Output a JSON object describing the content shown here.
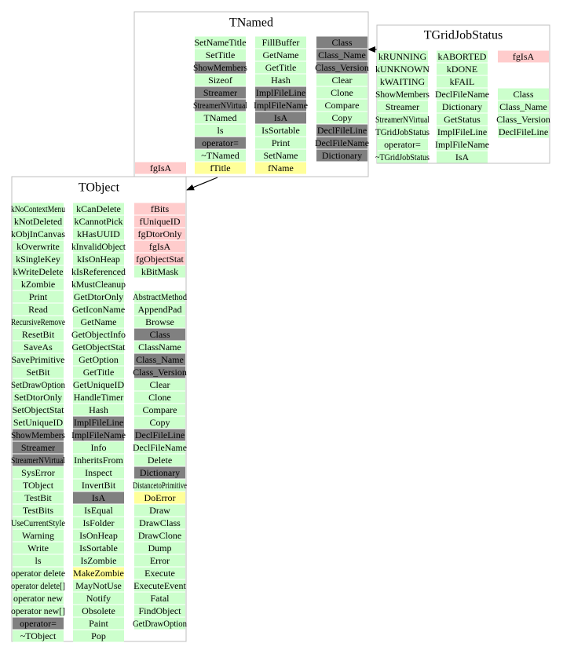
{
  "palette": {
    "g": "#ccffcc",
    "d": "#808080",
    "p": "#ffcccc",
    "y": "#ffff99"
  },
  "classes": [
    {
      "title": "TNamed",
      "columns": [
        [
          [
            "fgIsA",
            "p"
          ]
        ],
        [
          [
            "SetNameTitle",
            "g"
          ],
          [
            "SetTitle",
            "g"
          ],
          [
            "ShowMembers",
            "d"
          ],
          [
            "Sizeof",
            "g"
          ],
          [
            "Streamer",
            "d"
          ],
          [
            "StreamerNVirtual",
            "d"
          ],
          [
            "TNamed",
            "g"
          ],
          [
            "ls",
            "g"
          ],
          [
            "operator=",
            "d"
          ],
          [
            "~TNamed",
            "g"
          ],
          [
            "fTitle",
            "y"
          ]
        ],
        [
          [
            "FillBuffer",
            "g"
          ],
          [
            "GetName",
            "g"
          ],
          [
            "GetTitle",
            "g"
          ],
          [
            "Hash",
            "g"
          ],
          [
            "ImplFileLine",
            "d"
          ],
          [
            "ImplFileName",
            "d"
          ],
          [
            "IsA",
            "d"
          ],
          [
            "IsSortable",
            "g"
          ],
          [
            "Print",
            "g"
          ],
          [
            "SetName",
            "g"
          ],
          [
            "fName",
            "y"
          ]
        ],
        [
          [
            "Class",
            "d"
          ],
          [
            "Class_Name",
            "d"
          ],
          [
            "Class_Version",
            "d"
          ],
          [
            "Clear",
            "g"
          ],
          [
            "Clone",
            "g"
          ],
          [
            "Compare",
            "g"
          ],
          [
            "Copy",
            "g"
          ],
          [
            "DeclFileLine",
            "d"
          ],
          [
            "DeclFileName",
            "d"
          ],
          [
            "Dictionary",
            "d"
          ]
        ]
      ]
    },
    {
      "title": "TGridJobStatus",
      "columns": [
        [
          [
            "kRUNNING",
            "g"
          ],
          [
            "kUNKNOWN",
            "g"
          ],
          [
            "kWAITING",
            "g"
          ],
          [
            "ShowMembers",
            "g"
          ],
          [
            "Streamer",
            "g"
          ],
          [
            "StreamerNVirtual",
            "g"
          ],
          [
            "TGridJobStatus",
            "g"
          ],
          [
            "operator=",
            "g"
          ],
          [
            "~TGridJobStatus",
            "g"
          ]
        ],
        [
          [
            "kABORTED",
            "g"
          ],
          [
            "kDONE",
            "g"
          ],
          [
            "kFAIL",
            "g"
          ],
          [
            "DeclFileName",
            "g"
          ],
          [
            "Dictionary",
            "g"
          ],
          [
            "GetStatus",
            "g"
          ],
          [
            "ImplFileLine",
            "g"
          ],
          [
            "ImplFileName",
            "g"
          ],
          [
            "IsA",
            "g"
          ]
        ],
        [
          [
            "fgIsA",
            "p"
          ]
        ],
        [
          [
            "Class",
            "g"
          ],
          [
            "Class_Name",
            "g"
          ],
          [
            "Class_Version",
            "g"
          ],
          [
            "DeclFileLine",
            "g"
          ]
        ]
      ]
    },
    {
      "title": "TObject",
      "columns": [
        [
          [
            "kNoContextMenu",
            "g"
          ],
          [
            "kNotDeleted",
            "g"
          ],
          [
            "kObjInCanvas",
            "g"
          ],
          [
            "kOverwrite",
            "g"
          ],
          [
            "kSingleKey",
            "g"
          ],
          [
            "kWriteDelete",
            "g"
          ],
          [
            "kZombie",
            "g"
          ],
          [
            "Print",
            "g"
          ],
          [
            "Read",
            "g"
          ],
          [
            "RecursiveRemove",
            "g"
          ],
          [
            "ResetBit",
            "g"
          ],
          [
            "SaveAs",
            "g"
          ],
          [
            "SavePrimitive",
            "g"
          ],
          [
            "SetBit",
            "g"
          ],
          [
            "SetDrawOption",
            "g"
          ],
          [
            "SetDtorOnly",
            "g"
          ],
          [
            "SetObjectStat",
            "g"
          ],
          [
            "SetUniqueID",
            "g"
          ],
          [
            "ShowMembers",
            "d"
          ],
          [
            "Streamer",
            "d"
          ],
          [
            "StreamerNVirtual",
            "d"
          ],
          [
            "SysError",
            "g"
          ],
          [
            "TObject",
            "g"
          ],
          [
            "TestBit",
            "g"
          ],
          [
            "TestBits",
            "g"
          ],
          [
            "UseCurrentStyle",
            "g"
          ],
          [
            "Warning",
            "g"
          ],
          [
            "Write",
            "g"
          ],
          [
            "ls",
            "g"
          ],
          [
            "operator delete",
            "g"
          ],
          [
            "operator delete[]",
            "g"
          ],
          [
            "operator new",
            "g"
          ],
          [
            "operator new[]",
            "g"
          ],
          [
            "operator=",
            "d"
          ],
          [
            "~TObject",
            "g"
          ]
        ],
        [
          [
            "kCanDelete",
            "g"
          ],
          [
            "kCannotPick",
            "g"
          ],
          [
            "kHasUUID",
            "g"
          ],
          [
            "kInvalidObject",
            "g"
          ],
          [
            "kIsOnHeap",
            "g"
          ],
          [
            "kIsReferenced",
            "g"
          ],
          [
            "kMustCleanup",
            "g"
          ],
          [
            "GetDtorOnly",
            "g"
          ],
          [
            "GetIconName",
            "g"
          ],
          [
            "GetName",
            "g"
          ],
          [
            "GetObjectInfo",
            "g"
          ],
          [
            "GetObjectStat",
            "g"
          ],
          [
            "GetOption",
            "g"
          ],
          [
            "GetTitle",
            "g"
          ],
          [
            "GetUniqueID",
            "g"
          ],
          [
            "HandleTimer",
            "g"
          ],
          [
            "Hash",
            "g"
          ],
          [
            "ImplFileLine",
            "d"
          ],
          [
            "ImplFileName",
            "d"
          ],
          [
            "Info",
            "g"
          ],
          [
            "InheritsFrom",
            "g"
          ],
          [
            "Inspect",
            "g"
          ],
          [
            "InvertBit",
            "g"
          ],
          [
            "IsA",
            "d"
          ],
          [
            "IsEqual",
            "g"
          ],
          [
            "IsFolder",
            "g"
          ],
          [
            "IsOnHeap",
            "g"
          ],
          [
            "IsSortable",
            "g"
          ],
          [
            "IsZombie",
            "g"
          ],
          [
            "MakeZombie",
            "y"
          ],
          [
            "MayNotUse",
            "g"
          ],
          [
            "Notify",
            "g"
          ],
          [
            "Obsolete",
            "g"
          ],
          [
            "Paint",
            "g"
          ],
          [
            "Pop",
            "g"
          ]
        ],
        [
          [
            "fBits",
            "p"
          ],
          [
            "fUniqueID",
            "p"
          ],
          [
            "fgDtorOnly",
            "p"
          ],
          [
            "fgIsA",
            "p"
          ],
          [
            "fgObjectStat",
            "p"
          ],
          [
            "kBitMask",
            "g"
          ]
        ],
        [
          [
            "AbstractMethod",
            "g"
          ],
          [
            "AppendPad",
            "g"
          ],
          [
            "Browse",
            "g"
          ],
          [
            "Class",
            "d"
          ],
          [
            "ClassName",
            "g"
          ],
          [
            "Class_Name",
            "d"
          ],
          [
            "Class_Version",
            "d"
          ],
          [
            "Clear",
            "g"
          ],
          [
            "Clone",
            "g"
          ],
          [
            "Compare",
            "g"
          ],
          [
            "Copy",
            "g"
          ],
          [
            "DeclFileLine",
            "d"
          ],
          [
            "DeclFileName",
            "g"
          ],
          [
            "Delete",
            "g"
          ],
          [
            "Dictionary",
            "d"
          ],
          [
            "DistancetoPrimitive",
            "g"
          ],
          [
            "DoError",
            "y"
          ],
          [
            "Draw",
            "g"
          ],
          [
            "DrawClass",
            "g"
          ],
          [
            "DrawClone",
            "g"
          ],
          [
            "Dump",
            "g"
          ],
          [
            "Error",
            "g"
          ],
          [
            "Execute",
            "g"
          ],
          [
            "ExecuteEvent",
            "g"
          ],
          [
            "Fatal",
            "g"
          ],
          [
            "FindObject",
            "g"
          ],
          [
            "GetDrawOption",
            "g"
          ]
        ]
      ]
    }
  ]
}
